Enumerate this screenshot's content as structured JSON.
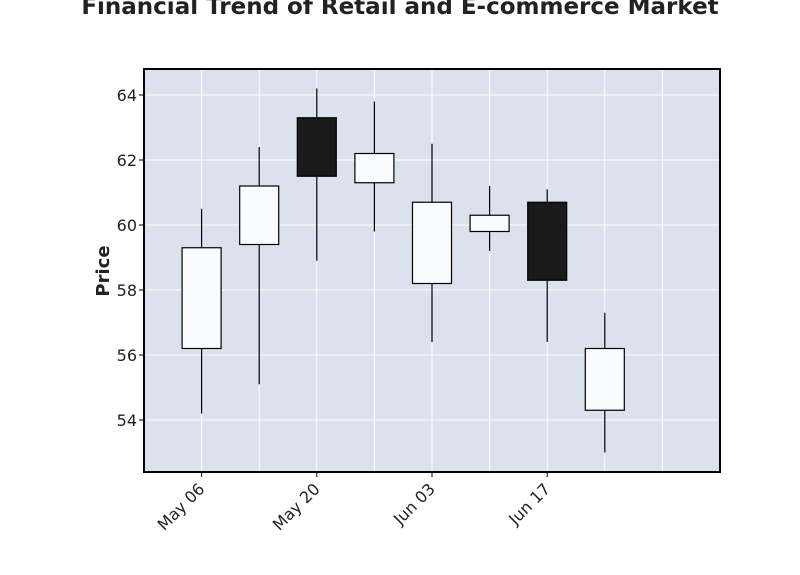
{
  "chart_data": {
    "type": "candlestick",
    "title": "Financial Trend of Retail and E-commerce Market",
    "xlabel": "",
    "ylabel": "Price",
    "ylim": [
      52.4,
      64.8
    ],
    "y_ticks": [
      54,
      56,
      58,
      60,
      62,
      64
    ],
    "x_tick_labels": [
      "May 06",
      "May 20",
      "Jun 03",
      "Jun 17"
    ],
    "x_tick_dates": [
      "2024-05-06",
      "2024-05-20",
      "2024-06-03",
      "2024-06-17"
    ],
    "xlim": [
      "2024-04-29",
      "2024-07-08"
    ],
    "grid": true,
    "colors": {
      "up": "#fafbff",
      "down": "#1a1a1a",
      "plot_bg": "#dce1ee",
      "grid": "#ffffff",
      "edge": "#000000"
    },
    "candles": [
      {
        "date": "2024-05-06",
        "open": 56.2,
        "high": 60.5,
        "low": 54.2,
        "close": 59.3
      },
      {
        "date": "2024-05-13",
        "open": 59.4,
        "high": 62.4,
        "low": 55.1,
        "close": 61.2
      },
      {
        "date": "2024-05-20",
        "open": 63.3,
        "high": 64.2,
        "low": 58.9,
        "close": 61.5
      },
      {
        "date": "2024-05-27",
        "open": 61.3,
        "high": 63.8,
        "low": 59.8,
        "close": 62.2
      },
      {
        "date": "2024-06-03",
        "open": 58.2,
        "high": 62.5,
        "low": 56.4,
        "close": 60.7
      },
      {
        "date": "2024-06-10",
        "open": 59.8,
        "high": 61.2,
        "low": 59.2,
        "close": 60.3
      },
      {
        "date": "2024-06-17",
        "open": 60.7,
        "high": 61.1,
        "low": 56.4,
        "close": 58.3
      },
      {
        "date": "2024-06-24",
        "open": 54.3,
        "high": 57.3,
        "low": 53.0,
        "close": 56.2
      }
    ]
  }
}
